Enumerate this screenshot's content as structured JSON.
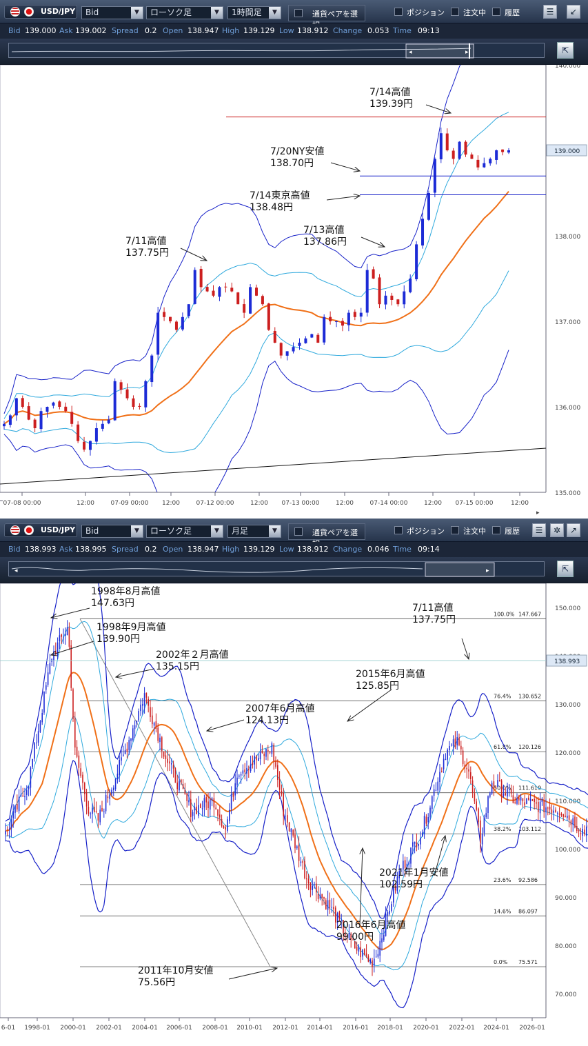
{
  "colors": {
    "up": "#1c2bd6",
    "down": "#cc1f1f",
    "ma": "#f07018",
    "band1": "#2fa9dd",
    "band2": "#1620c8",
    "hline_red": "#cc1f1f",
    "hline_blue": "#1620c8",
    "fib": "#555555"
  },
  "panel1": {
    "toolbar": {
      "pair": "USD/JPY",
      "price_type": "Bid",
      "chart_type": "ローソク足",
      "timeframe": "1時間足",
      "pair_select": "通貨ペアを選択",
      "position": "ポジション",
      "orders": "注文中",
      "history": "履歴"
    },
    "quote": {
      "bid_label": "Bid",
      "bid": "139.000",
      "ask_label": "Ask",
      "ask": "139.002",
      "spread_label": "Spread",
      "spread": "0.2",
      "open_label": "Open",
      "open": "138.947",
      "high_label": "High",
      "high": "139.129",
      "low_label": "Low",
      "low": "138.912",
      "change_label": "Change",
      "change": "0.053",
      "time_label": "Time",
      "time": "09:13"
    },
    "chart_data": {
      "type": "candlestick",
      "timeframe": "1時間足",
      "ylim": [
        135.0,
        140.0
      ],
      "y_ticks": [
        "140.000",
        "139.000",
        "138.000",
        "137.000",
        "136.000",
        "135.000"
      ],
      "x_ticks": [
        "07-08 00:00",
        "12:00",
        "07-09 00:00",
        "12:00",
        "07-12 00:00",
        "12:00",
        "07-13 00:00",
        "12:00",
        "07-14 00:00",
        "12:00",
        "07-15 00:00",
        "12:00"
      ],
      "current_price": "139.000",
      "hlines": [
        {
          "value": 139.39,
          "color": "red"
        },
        {
          "value": 138.7,
          "color": "blue"
        },
        {
          "value": 138.48,
          "color": "blue"
        }
      ],
      "annotations": [
        {
          "line1": "7/14高値",
          "line2": "139.39円"
        },
        {
          "line1": "7/20NY安値",
          "line2": "138.70円"
        },
        {
          "line1": "7/14東京高値",
          "line2": "138.48円"
        },
        {
          "line1": "7/13高値",
          "line2": "137.86円"
        },
        {
          "line1": "7/11高値",
          "line2": "137.75円"
        }
      ],
      "path_close": [
        135.8,
        135.9,
        136.1,
        136.0,
        135.85,
        135.75,
        135.95,
        136.0,
        136.05,
        136.0,
        135.95,
        135.8,
        135.6,
        135.5,
        135.6,
        135.75,
        135.8,
        135.85,
        136.3,
        136.2,
        136.1,
        136.0,
        136.0,
        136.3,
        136.6,
        137.1,
        137.05,
        137.0,
        136.9,
        137.05,
        137.2,
        137.6,
        137.4,
        137.35,
        137.3,
        137.4,
        137.4,
        137.35,
        137.2,
        137.1,
        137.4,
        137.3,
        137.2,
        136.9,
        136.75,
        136.6,
        136.65,
        136.7,
        136.75,
        136.8,
        136.85,
        136.75,
        137.05,
        137.0,
        137.0,
        136.95,
        137.1,
        137.05,
        137.1,
        137.6,
        137.5,
        137.2,
        137.3,
        137.25,
        137.2,
        137.35,
        137.5,
        137.9,
        138.2,
        138.5,
        138.9,
        139.2,
        139.0,
        138.9,
        139.1,
        138.95,
        138.9,
        138.8,
        138.85,
        138.9,
        139.0,
        138.98,
        139.0
      ]
    }
  },
  "panel2": {
    "toolbar": {
      "pair": "USD/JPY",
      "price_type": "Bid",
      "chart_type": "ローソク足",
      "timeframe": "月足",
      "pair_select": "通貨ペアを選択",
      "position": "ポジション",
      "orders": "注文中",
      "history": "履歴"
    },
    "quote": {
      "bid_label": "Bid",
      "bid": "138.993",
      "ask_label": "Ask",
      "ask": "138.995",
      "spread_label": "Spread",
      "spread": "0.2",
      "open_label": "Open",
      "open": "138.947",
      "high_label": "High",
      "high": "139.129",
      "low_label": "Low",
      "low": "138.912",
      "change_label": "Change",
      "change": "0.046",
      "time_label": "Time",
      "time": "09:14"
    },
    "chart_data": {
      "type": "candlestick",
      "timeframe": "月足",
      "ylim": [
        65,
        155
      ],
      "y_ticks": [
        "150.000",
        "140.000",
        "130.000",
        "120.000",
        "110.000",
        "100.000",
        "90.000",
        "80.000",
        "70.000"
      ],
      "x_ticks": [
        "6-01",
        "1998-01",
        "2000-01",
        "2002-01",
        "2004-01",
        "2006-01",
        "2008-01",
        "2010-01",
        "2012-01",
        "2014-01",
        "2016-01",
        "2018-01",
        "2020-01",
        "2022-01",
        "2024-01",
        "2026-01"
      ],
      "current_price": "138.993",
      "fib_levels": [
        {
          "pct": "100.0%",
          "value": "147.667"
        },
        {
          "pct": "76.4%",
          "value": "130.652"
        },
        {
          "pct": "61.8%",
          "value": "120.126"
        },
        {
          "pct": "50.0%",
          "value": "111.619"
        },
        {
          "pct": "38.2%",
          "value": "103.112"
        },
        {
          "pct": "23.6%",
          "value": "92.586"
        },
        {
          "pct": "14.6%",
          "value": "86.097"
        },
        {
          "pct": "0.0%",
          "value": "75.571"
        }
      ],
      "annotations": [
        {
          "line1": "1998年8月高値",
          "line2": "147.63円"
        },
        {
          "line1": "1998年9月高値",
          "line2": "139.90円"
        },
        {
          "line1": "2002年２月高値",
          "line2": "135.15円"
        },
        {
          "line1": "2007年6月高値",
          "line2": "124.13円"
        },
        {
          "line1": "2011年10月安値",
          "line2": "75.56円"
        },
        {
          "line1": "2015年6月高値",
          "line2": "125.85円"
        },
        {
          "line1": "2016年6月高値",
          "line2": "99.00円"
        },
        {
          "line1": "2021年1月安値",
          "line2": "102.59円"
        },
        {
          "line1": "7/11高値",
          "line2": "137.75円"
        }
      ],
      "path": [
        [
          1996,
          103
        ],
        [
          1997,
          114
        ],
        [
          1998,
          140
        ],
        [
          1998.7,
          146
        ],
        [
          1999,
          120
        ],
        [
          1999.6,
          108
        ],
        [
          2000,
          106
        ],
        [
          2001,
          118
        ],
        [
          2002,
          132
        ],
        [
          2003,
          118
        ],
        [
          2004,
          108
        ],
        [
          2005,
          110
        ],
        [
          2005.5,
          104
        ],
        [
          2006,
          116
        ],
        [
          2007,
          119
        ],
        [
          2007.5,
          121
        ],
        [
          2008,
          108
        ],
        [
          2009,
          94
        ],
        [
          2010,
          88
        ],
        [
          2011,
          80
        ],
        [
          2011.8,
          76.5
        ],
        [
          2012,
          78
        ],
        [
          2013,
          95
        ],
        [
          2014,
          104
        ],
        [
          2015,
          120
        ],
        [
          2015.5,
          122
        ],
        [
          2016,
          116
        ],
        [
          2016.5,
          102
        ],
        [
          2017,
          114
        ],
        [
          2018,
          110
        ],
        [
          2019,
          109
        ],
        [
          2020,
          108
        ],
        [
          2021,
          103.5
        ],
        [
          2021.5,
          110
        ],
        [
          2022,
          116
        ],
        [
          2022.5,
          134
        ],
        [
          2022.55,
          138.8
        ]
      ]
    }
  }
}
